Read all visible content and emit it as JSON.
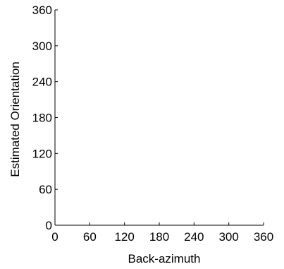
{
  "chart_data": {
    "type": "scatter",
    "series": [],
    "xlabel": "Back-azimuth",
    "ylabel": "Estimated Orientation",
    "xlim": [
      0,
      360
    ],
    "ylim": [
      0,
      360
    ],
    "xticks": [
      "0",
      "60",
      "120",
      "180",
      "240",
      "300",
      "360"
    ],
    "yticks": [
      "0",
      "60",
      "120",
      "180",
      "240",
      "300",
      "360"
    ],
    "grid": false,
    "axes_box": "left-and-bottom",
    "colors": {
      "axis": "#000000",
      "background": "#ffffff"
    }
  }
}
